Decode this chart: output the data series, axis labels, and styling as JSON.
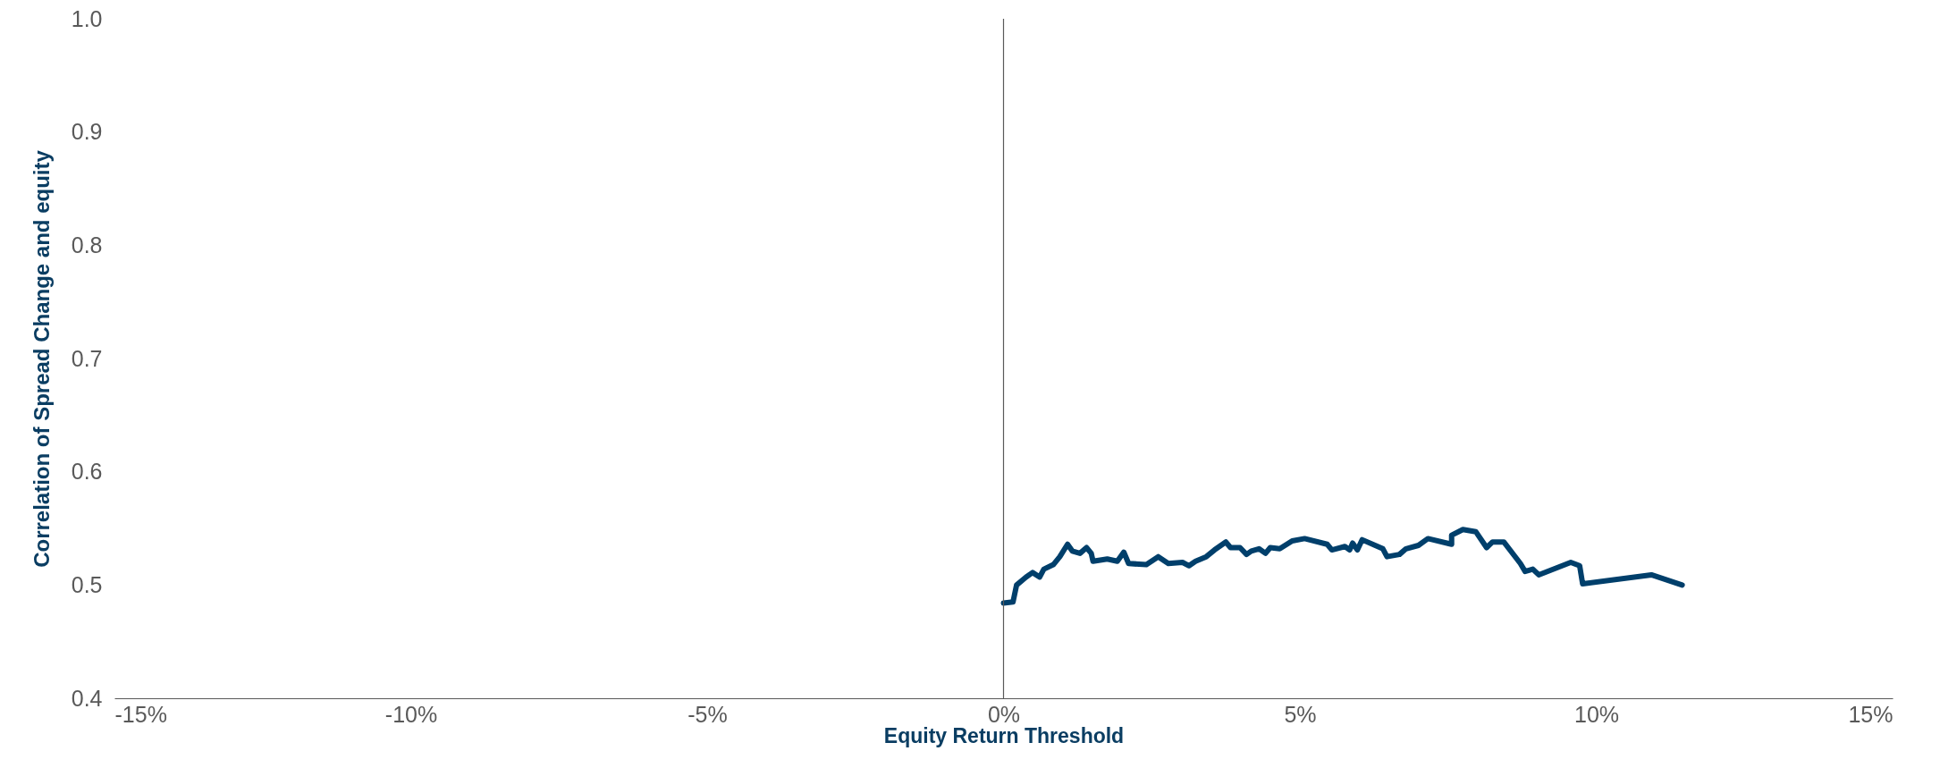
{
  "chart_data": {
    "type": "line",
    "xlabel": "Equity Return Threshold",
    "ylabel": "Correlation of Spread Change and equity",
    "x": [
      0.0,
      0.16,
      0.22,
      0.38,
      0.49,
      0.61,
      0.68,
      0.84,
      0.95,
      1.08,
      1.16,
      1.29,
      1.4,
      1.48,
      1.51,
      1.75,
      1.92,
      2.03,
      2.11,
      2.41,
      2.61,
      2.78,
      3.02,
      3.13,
      3.24,
      3.42,
      3.56,
      3.75,
      3.83,
      3.99,
      4.1,
      4.18,
      4.31,
      4.42,
      4.5,
      4.66,
      4.87,
      5.08,
      5.46,
      5.54,
      5.76,
      5.84,
      5.89,
      5.97,
      6.05,
      6.27,
      6.4,
      6.47,
      6.68,
      6.79,
      7.0,
      7.16,
      7.56,
      7.56,
      7.75,
      7.97,
      8.15,
      8.25,
      8.44,
      8.72,
      8.8,
      8.93,
      9.03,
      9.57,
      9.72,
      9.77,
      10.93,
      11.45
    ],
    "series": [
      {
        "color": "#003f6b",
        "values": [
          0.484,
          0.485,
          0.5,
          0.507,
          0.511,
          0.507,
          0.514,
          0.518,
          0.525,
          0.536,
          0.53,
          0.528,
          0.533,
          0.528,
          0.521,
          0.523,
          0.521,
          0.529,
          0.519,
          0.518,
          0.525,
          0.519,
          0.52,
          0.517,
          0.521,
          0.525,
          0.531,
          0.538,
          0.533,
          0.533,
          0.527,
          0.53,
          0.532,
          0.528,
          0.533,
          0.532,
          0.539,
          0.541,
          0.536,
          0.531,
          0.534,
          0.531,
          0.537,
          0.531,
          0.54,
          0.535,
          0.532,
          0.525,
          0.527,
          0.532,
          0.535,
          0.541,
          0.536,
          0.544,
          0.549,
          0.547,
          0.533,
          0.538,
          0.538,
          0.519,
          0.512,
          0.514,
          0.509,
          0.52,
          0.517,
          0.501,
          0.509,
          0.5
        ]
      }
    ],
    "xlim": [
      -15,
      15
    ],
    "xticks": [
      {
        "value": -15,
        "label": "-15%"
      },
      {
        "value": -10,
        "label": "-10%"
      },
      {
        "value": -5,
        "label": "-5%"
      },
      {
        "value": 0,
        "label": "0%"
      },
      {
        "value": 5,
        "label": "5%"
      },
      {
        "value": 10,
        "label": "10%"
      },
      {
        "value": 15,
        "label": "15%"
      }
    ],
    "ylim": [
      0.4,
      1.0
    ],
    "yticks": [
      0.4,
      0.5,
      0.6,
      0.7,
      0.8,
      0.9,
      {
        "value": 1.0,
        "label": "1.0"
      }
    ],
    "ref_lines": [
      {
        "axis": "x",
        "value": 0,
        "label": null,
        "color": "#595959"
      }
    ],
    "grid": false,
    "marker": "none",
    "line_style": "solid"
  }
}
